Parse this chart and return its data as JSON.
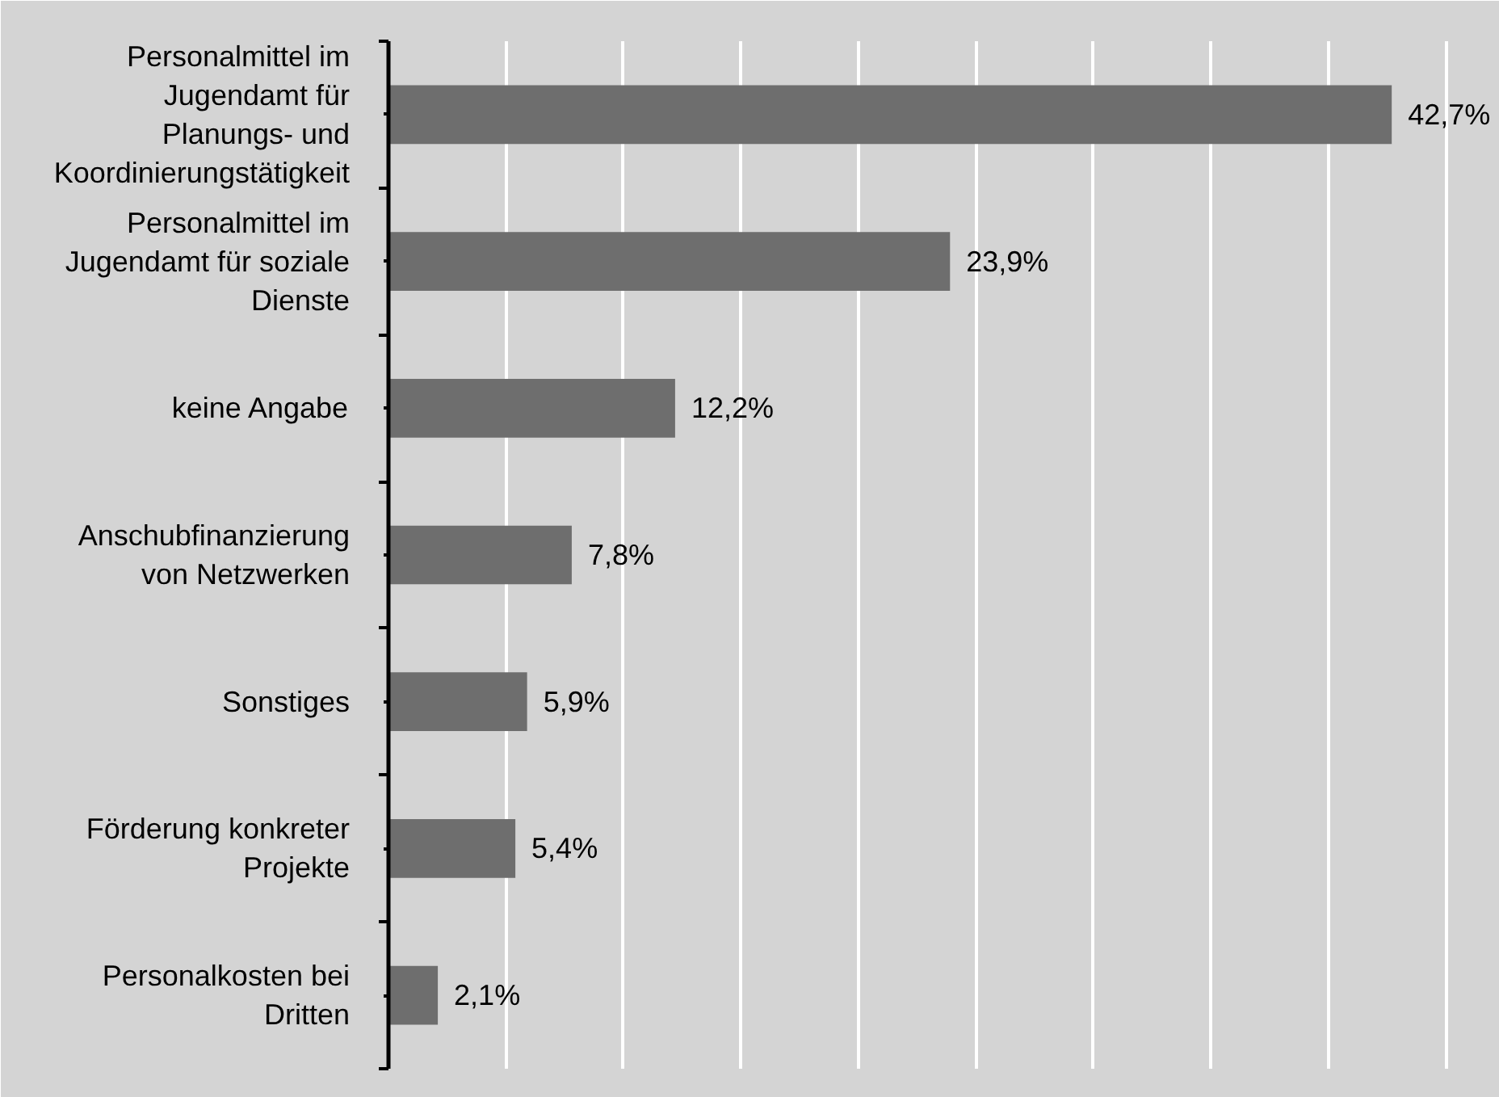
{
  "chart_data": {
    "type": "bar",
    "orientation": "horizontal",
    "categories": [
      "Personalmittel im Jugendamt für Planungs- und Koordinierungstätigkeit",
      "Personalmittel im Jugendamt für soziale Dienste",
      "keine Angabe",
      "Anschubfinanzierung von Netzwerken",
      "Sonstiges",
      "Förderung konkreter Projekte",
      "Personalkosten bei Dritten"
    ],
    "values": [
      42.7,
      23.9,
      12.2,
      7.8,
      5.9,
      5.4,
      2.1
    ],
    "value_labels": [
      "42,7%",
      "23,9%",
      "12,2%",
      "7,8%",
      "5,9%",
      "5,4%",
      "2,1%"
    ],
    "color": "#6e6e6e",
    "xlim": [
      0,
      47.3
    ],
    "xticks": [
      {
        "value": 5,
        "label": null
      },
      {
        "value": 10,
        "label": null
      },
      {
        "value": 15,
        "label": null
      },
      {
        "value": 20,
        "label": null
      },
      {
        "value": 25,
        "label": null
      },
      {
        "value": 30,
        "label": null
      },
      {
        "value": 35,
        "label": null
      },
      {
        "value": 40,
        "label": null
      },
      {
        "value": 45,
        "label": null
      }
    ],
    "grid": "x",
    "tick_labels": "y"
  }
}
